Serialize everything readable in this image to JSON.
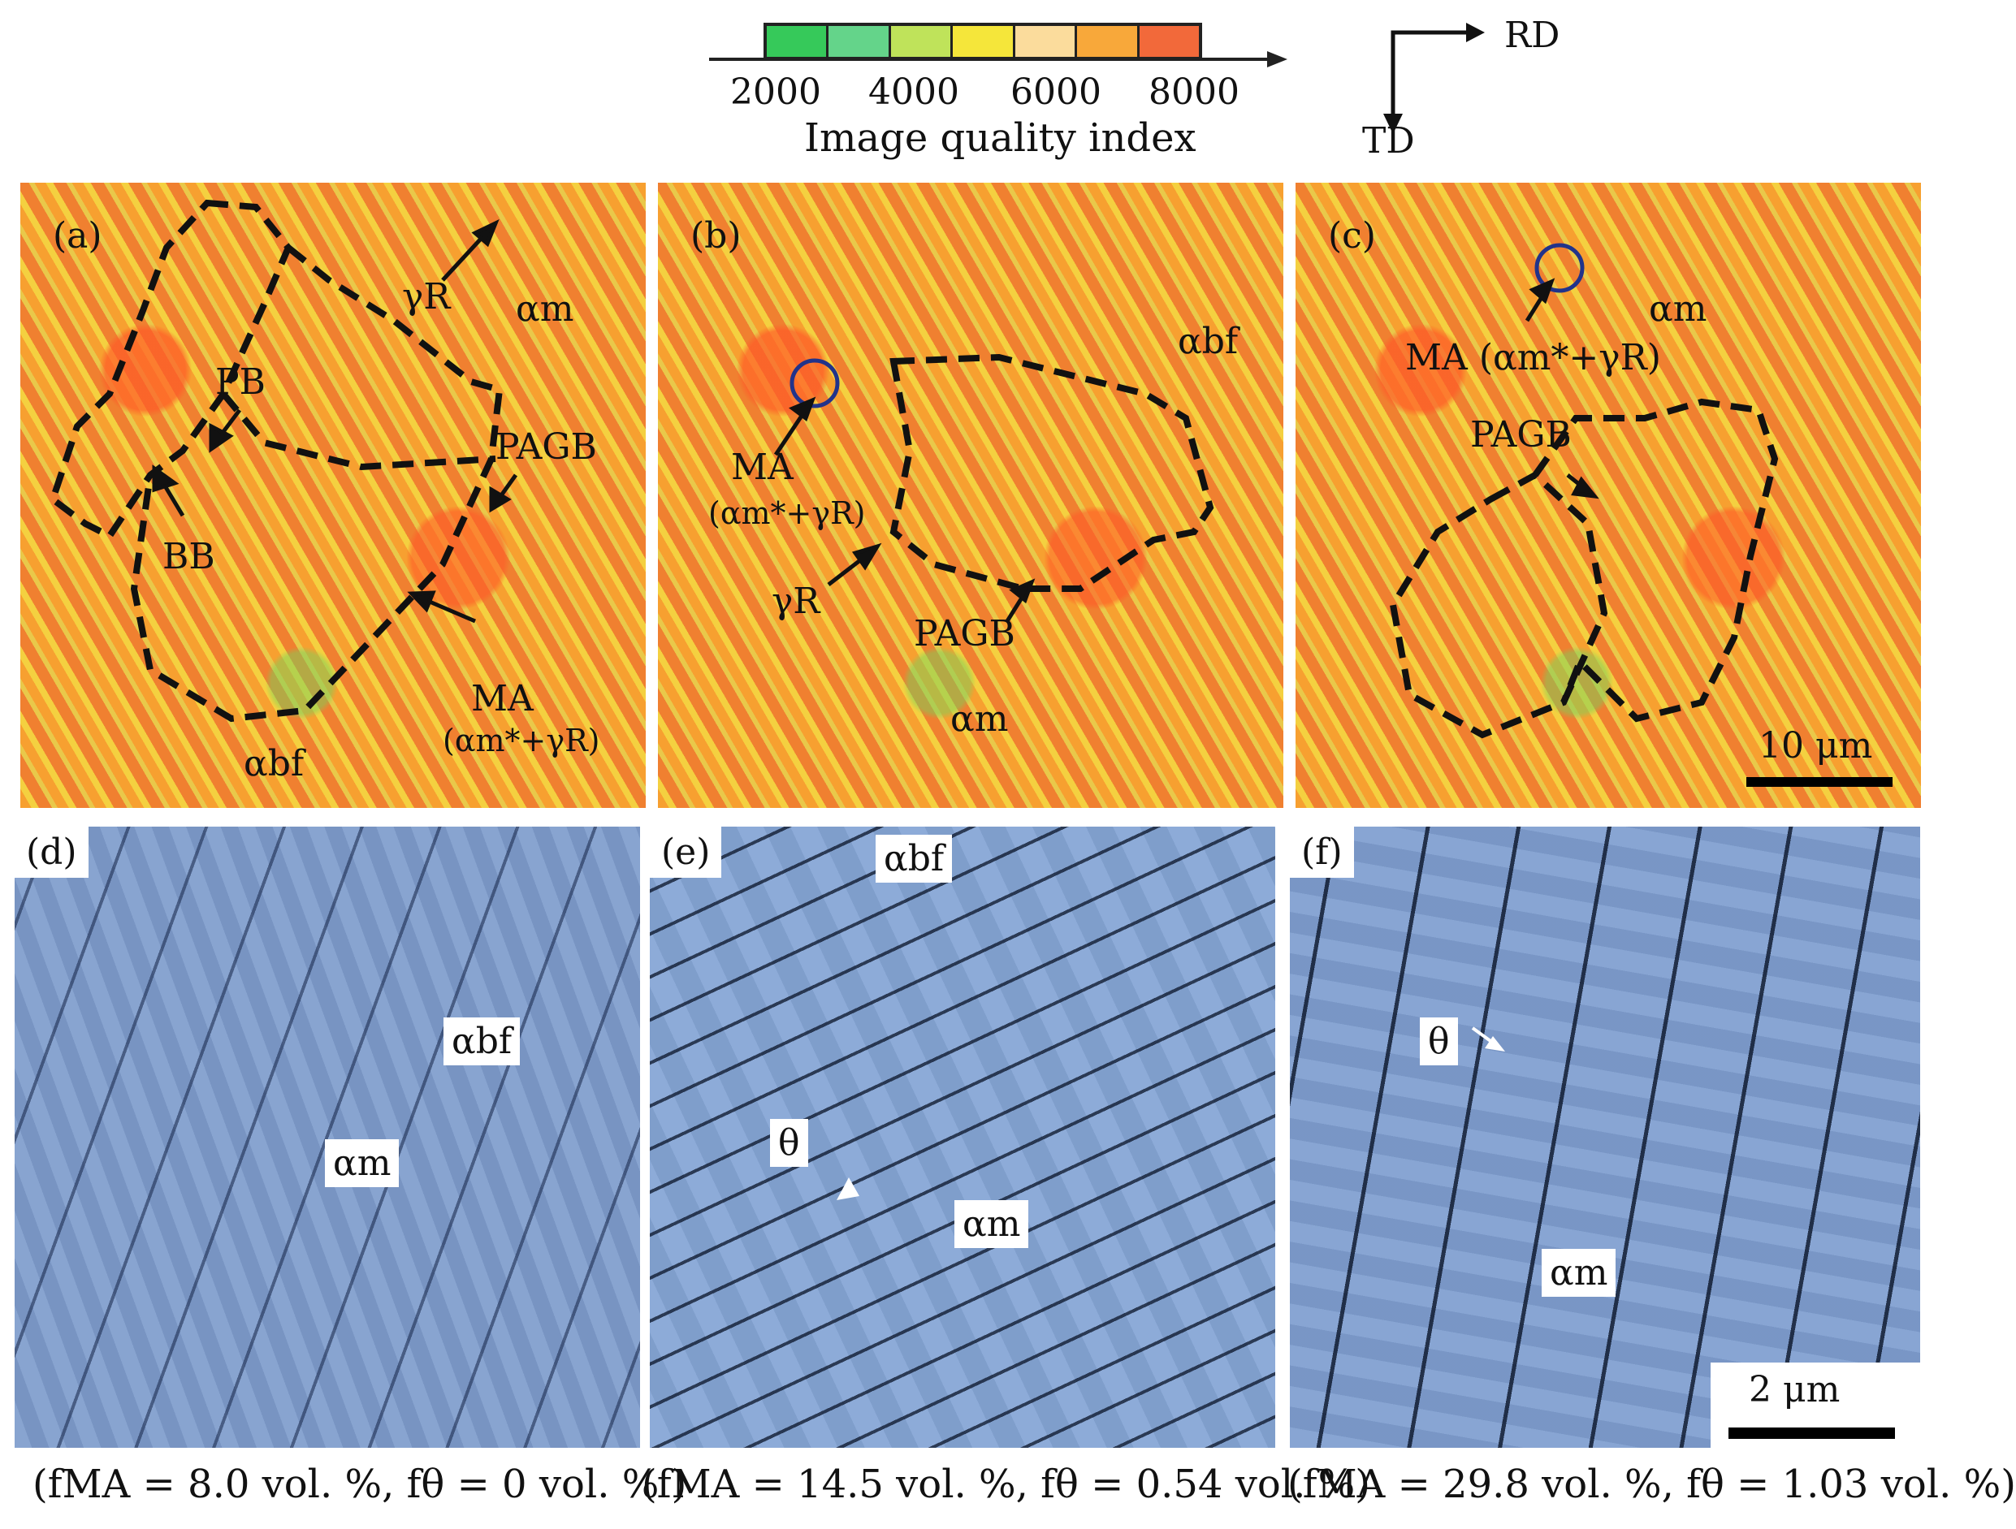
{
  "colorbar": {
    "title": "Image quality index",
    "ticks": [
      "2000",
      "4000",
      "6000",
      "8000"
    ],
    "colors": [
      "#36c95a",
      "#64d48a",
      "#bfe35a",
      "#f5e63a",
      "#fbdc9c",
      "#f8a83a",
      "#f2693a"
    ]
  },
  "axes": {
    "rd": "RD",
    "td": "TD"
  },
  "panels": {
    "a": {
      "letter": "(a)",
      "labels": {
        "gamma_r": "γR",
        "alpha_m": "αm",
        "pb": "PB",
        "pagb": "PAGB",
        "bb": "BB",
        "ma": "MA",
        "ma_sub": "(αm*+γR)",
        "alpha_bf": "αbf"
      }
    },
    "b": {
      "letter": "(b)",
      "labels": {
        "alpha_bf": "αbf",
        "ma": "MA",
        "ma_sub": "(αm*+γR)",
        "gamma_r": "γR",
        "pagb": "PAGB",
        "alpha_m": "αm"
      }
    },
    "c": {
      "letter": "(c)",
      "labels": {
        "alpha_m": "αm",
        "ma": "MA (αm*+γR)",
        "pagb": "PAGB"
      },
      "scalebar": "10 μm"
    },
    "d": {
      "letter": "(d)",
      "labels": {
        "alpha_bf": "αbf",
        "alpha_m": "αm"
      }
    },
    "e": {
      "letter": "(e)",
      "labels": {
        "alpha_bf": "αbf",
        "theta": "θ",
        "alpha_m": "αm"
      }
    },
    "f": {
      "letter": "(f)",
      "labels": {
        "theta": "θ",
        "alpha_m": "αm"
      },
      "scalebar": "2 μm"
    }
  },
  "captions": [
    "(fMA = 8.0 vol. %, fθ = 0 vol. % )",
    "(fMA = 14.5 vol. %, fθ = 0.54 vol. %)",
    "(fMA = 29.8 vol. %, fθ = 1.03 vol. %)"
  ]
}
